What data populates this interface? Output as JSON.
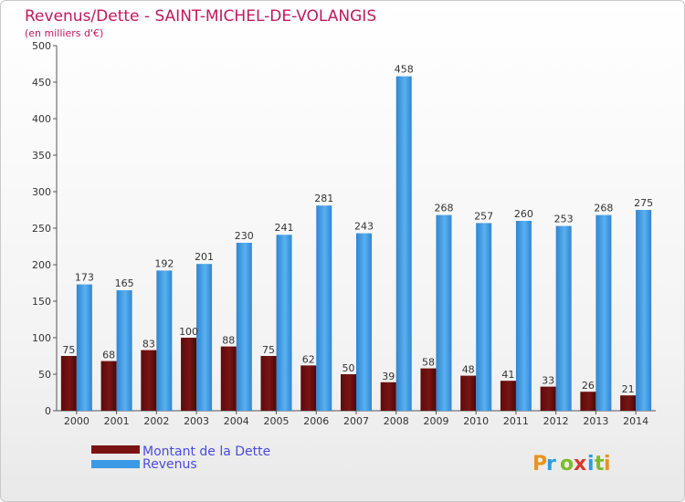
{
  "colors": {
    "title": "#c0185e",
    "dette": "#7a1414",
    "revenus": "#3a9ae6",
    "legend_text": "#4a4adf"
  },
  "logo": {
    "text": "Proxiti"
  },
  "chart_data": {
    "type": "bar",
    "title": "Revenus/Dette - SAINT-MICHEL-DE-VOLANGIS",
    "subtitle": "(en milliers d'€)",
    "categories": [
      "2000",
      "2001",
      "2002",
      "2003",
      "2004",
      "2005",
      "2006",
      "2007",
      "2008",
      "2009",
      "2010",
      "2011",
      "2012",
      "2013",
      "2014"
    ],
    "series": [
      {
        "name": "Montant de la Dette",
        "color": "#7a1414",
        "values": [
          75,
          68,
          83,
          100,
          88,
          75,
          62,
          50,
          39,
          58,
          48,
          41,
          33,
          26,
          21
        ]
      },
      {
        "name": "Revenus",
        "color": "#3a9ae6",
        "values": [
          173,
          165,
          192,
          201,
          230,
          241,
          281,
          243,
          458,
          268,
          257,
          260,
          253,
          268,
          275
        ]
      }
    ],
    "ylim": [
      0,
      500
    ],
    "yticks": [
      0,
      50,
      100,
      150,
      200,
      250,
      300,
      350,
      400,
      450,
      500
    ],
    "grid": false,
    "legend_position": "bottom-left"
  }
}
